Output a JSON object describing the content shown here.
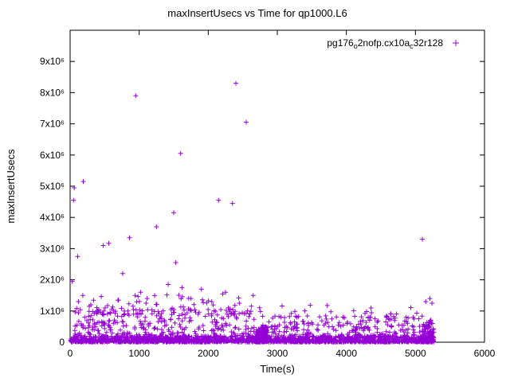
{
  "chart_data": {
    "type": "scatter",
    "title": "maxInsertUsecs vs Time for qp1000.L6",
    "xlabel": "Time(s)",
    "ylabel": "maxInsertUsecs",
    "xlim": [
      0,
      6000
    ],
    "ylim": [
      0,
      10000000
    ],
    "grid": false,
    "legend_position": "top-right-inside",
    "marker": "plus",
    "marker_color": "#9400d3",
    "x_ticks": [
      {
        "v": 0,
        "label": "0"
      },
      {
        "v": 1000,
        "label": "1000"
      },
      {
        "v": 2000,
        "label": "2000"
      },
      {
        "v": 3000,
        "label": "3000"
      },
      {
        "v": 4000,
        "label": "4000"
      },
      {
        "v": 5000,
        "label": "5000"
      },
      {
        "v": 6000,
        "label": "6000"
      }
    ],
    "y_ticks": [
      {
        "v": 0,
        "label": "0"
      },
      {
        "v": 1000000,
        "label": "1x10⁶"
      },
      {
        "v": 2000000,
        "label": "2x10⁶"
      },
      {
        "v": 3000000,
        "label": "3x10⁶"
      },
      {
        "v": 4000000,
        "label": "4x10⁶"
      },
      {
        "v": 5000000,
        "label": "5x10⁶"
      },
      {
        "v": 6000000,
        "label": "6x10⁶"
      },
      {
        "v": 7000000,
        "label": "7x10⁶"
      },
      {
        "v": 8000000,
        "label": "8x10⁶"
      },
      {
        "v": 9000000,
        "label": "9x10⁶"
      }
    ],
    "series": [
      {
        "name": "pg176_o2nofp.cx10a_c32r128",
        "legend_parts": [
          {
            "t": "pg176",
            "sub": false
          },
          {
            "t": "o",
            "sub": true
          },
          {
            "t": "2nofp.cx10a",
            "sub": false
          },
          {
            "t": "c",
            "sub": true
          },
          {
            "t": "32r128",
            "sub": false
          }
        ],
        "color": "#9400d3",
        "outliers": [
          [
            30,
            1950000
          ],
          [
            50,
            4550000
          ],
          [
            60,
            4950000
          ],
          [
            110,
            2750000
          ],
          [
            190,
            5150000
          ],
          [
            480,
            3100000
          ],
          [
            560,
            3170000
          ],
          [
            760,
            2200000
          ],
          [
            860,
            3350000
          ],
          [
            950,
            7900000
          ],
          [
            1020,
            1600000
          ],
          [
            1250,
            3700000
          ],
          [
            1420,
            1850000
          ],
          [
            1500,
            4150000
          ],
          [
            1530,
            2550000
          ],
          [
            1600,
            6050000
          ],
          [
            1620,
            1750000
          ],
          [
            1900,
            1700000
          ],
          [
            2150,
            4550000
          ],
          [
            2350,
            4450000
          ],
          [
            2400,
            8300000
          ],
          [
            2550,
            7050000
          ],
          [
            2650,
            1500000
          ],
          [
            2250,
            1600000
          ],
          [
            5100,
            3300000
          ],
          [
            5150,
            1300000
          ],
          [
            5210,
            1400000
          ],
          [
            5240,
            1250000
          ],
          [
            120,
            1300000
          ],
          [
            300,
            1200000
          ],
          [
            700,
            1350000
          ],
          [
            1100,
            1250000
          ],
          [
            1750,
            1400000
          ],
          [
            2050,
            1300000
          ],
          [
            2450,
            1250000
          ]
        ],
        "noise_clusters": [
          {
            "count": 1100,
            "x": [
              5,
              5260
            ],
            "y_base": 5000,
            "y_range": 200000,
            "pow": 1.6
          },
          {
            "count": 500,
            "x": [
              10,
              2800
            ],
            "y_base": 20000,
            "y_range": 1050000,
            "pow": 2.2
          },
          {
            "count": 90,
            "x": [
              20,
              2750
            ],
            "y_base": 900000,
            "y_range": 650000,
            "pow": 2.0
          },
          {
            "count": 450,
            "x": [
              2800,
              5260
            ],
            "y_base": 15000,
            "y_range": 800000,
            "pow": 2.4
          },
          {
            "count": 35,
            "x": [
              2850,
              5250
            ],
            "y_base": 800000,
            "y_range": 400000,
            "pow": 2.0
          },
          {
            "count": 150,
            "x": [
              2690,
              2860
            ],
            "y_base": 5000,
            "y_range": 500000,
            "pow": 1.8
          },
          {
            "count": 90,
            "x": [
              5100,
              5265
            ],
            "y_base": 5000,
            "y_range": 700000,
            "pow": 1.8
          }
        ],
        "seed": 1337
      }
    ]
  }
}
